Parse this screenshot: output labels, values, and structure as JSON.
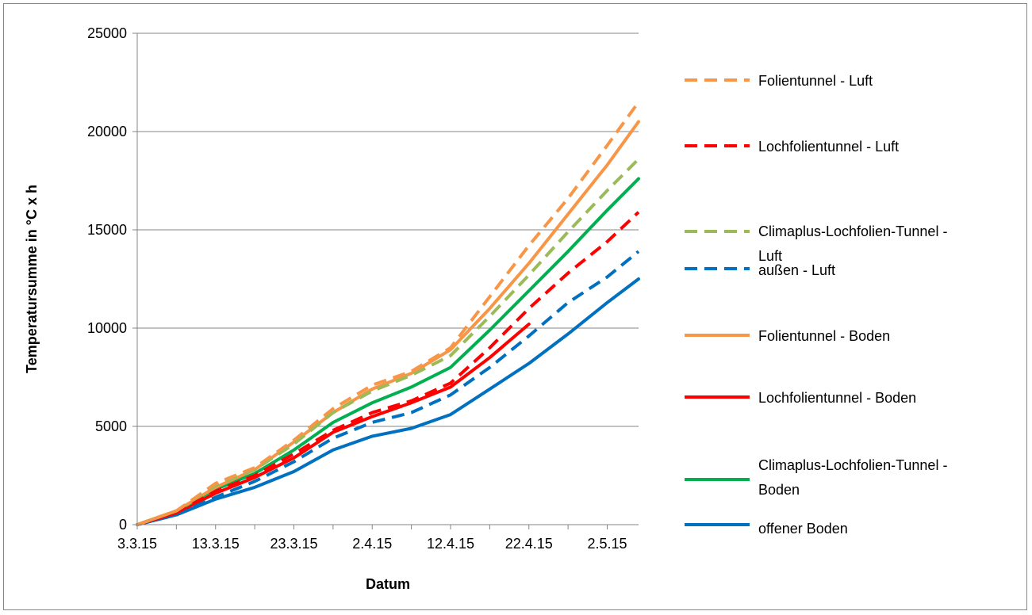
{
  "chart_data": {
    "type": "line",
    "title": "",
    "xlabel": "Datum",
    "ylabel": "Temperatursumme in °C x h",
    "x_ticks": [
      "3.3.15",
      "13.3.15",
      "23.3.15",
      "2.4.15",
      "12.4.15",
      "22.4.15",
      "2.5.15"
    ],
    "xlim": [
      "2015-03-03",
      "2015-05-06"
    ],
    "ylim": [
      0,
      25000
    ],
    "y_ticks": [
      0,
      5000,
      10000,
      15000,
      20000,
      25000
    ],
    "grid": "horizontal",
    "legend_position": "right",
    "series": [
      {
        "name": "Folientunnel - Luft",
        "color": "#f79646",
        "dash": true,
        "points": [
          [
            "2015-03-03",
            0
          ],
          [
            "2015-03-08",
            700
          ],
          [
            "2015-03-13",
            2100
          ],
          [
            "2015-03-18",
            2900
          ],
          [
            "2015-03-23",
            4300
          ],
          [
            "2015-03-28",
            5900
          ],
          [
            "2015-04-02",
            7100
          ],
          [
            "2015-04-07",
            7800
          ],
          [
            "2015-04-12",
            9000
          ],
          [
            "2015-04-17",
            11600
          ],
          [
            "2015-04-22",
            14200
          ],
          [
            "2015-04-27",
            16600
          ],
          [
            "2015-05-02",
            19300
          ],
          [
            "2015-05-06",
            21500
          ]
        ]
      },
      {
        "name": "Lochfolientunnel - Luft",
        "color": "#ff0000",
        "dash": true,
        "points": [
          [
            "2015-03-03",
            0
          ],
          [
            "2015-03-08",
            600
          ],
          [
            "2015-03-13",
            1700
          ],
          [
            "2015-03-18",
            2500
          ],
          [
            "2015-03-23",
            3600
          ],
          [
            "2015-03-28",
            4800
          ],
          [
            "2015-04-02",
            5700
          ],
          [
            "2015-04-07",
            6300
          ],
          [
            "2015-04-12",
            7200
          ],
          [
            "2015-04-17",
            9000
          ],
          [
            "2015-04-22",
            11000
          ],
          [
            "2015-04-27",
            12800
          ],
          [
            "2015-05-02",
            14400
          ],
          [
            "2015-05-06",
            15900
          ]
        ]
      },
      {
        "name": "Climaplus-Lochfolien-Tunnel - Luft",
        "color": "#9bbb59",
        "dash": true,
        "points": [
          [
            "2015-03-03",
            0
          ],
          [
            "2015-03-08",
            700
          ],
          [
            "2015-03-13",
            2000
          ],
          [
            "2015-03-18",
            2800
          ],
          [
            "2015-03-23",
            4100
          ],
          [
            "2015-03-28",
            5700
          ],
          [
            "2015-04-02",
            6800
          ],
          [
            "2015-04-07",
            7600
          ],
          [
            "2015-04-12",
            8600
          ],
          [
            "2015-04-17",
            10600
          ],
          [
            "2015-04-22",
            12700
          ],
          [
            "2015-04-27",
            14900
          ],
          [
            "2015-05-02",
            17000
          ],
          [
            "2015-05-06",
            18600
          ]
        ]
      },
      {
        "name": "außen - Luft",
        "color": "#0070c0",
        "dash": true,
        "points": [
          [
            "2015-03-03",
            0
          ],
          [
            "2015-03-08",
            500
          ],
          [
            "2015-03-13",
            1400
          ],
          [
            "2015-03-18",
            2200
          ],
          [
            "2015-03-23",
            3200
          ],
          [
            "2015-03-28",
            4400
          ],
          [
            "2015-04-02",
            5200
          ],
          [
            "2015-04-07",
            5700
          ],
          [
            "2015-04-12",
            6600
          ],
          [
            "2015-04-17",
            8000
          ],
          [
            "2015-04-22",
            9600
          ],
          [
            "2015-04-27",
            11300
          ],
          [
            "2015-05-02",
            12600
          ],
          [
            "2015-05-06",
            13900
          ]
        ]
      },
      {
        "name": "Folientunnel - Boden",
        "color": "#f79646",
        "dash": false,
        "points": [
          [
            "2015-03-03",
            0
          ],
          [
            "2015-03-08",
            700
          ],
          [
            "2015-03-13",
            1900
          ],
          [
            "2015-03-18",
            2800
          ],
          [
            "2015-03-23",
            4200
          ],
          [
            "2015-03-28",
            5700
          ],
          [
            "2015-04-02",
            6900
          ],
          [
            "2015-04-07",
            7700
          ],
          [
            "2015-04-12",
            8900
          ],
          [
            "2015-04-17",
            11000
          ],
          [
            "2015-04-22",
            13300
          ],
          [
            "2015-04-27",
            15800
          ],
          [
            "2015-05-02",
            18300
          ],
          [
            "2015-05-06",
            20500
          ]
        ]
      },
      {
        "name": "Lochfolientunnel - Boden",
        "color": "#ff0000",
        "dash": false,
        "points": [
          [
            "2015-03-03",
            0
          ],
          [
            "2015-03-08",
            600
          ],
          [
            "2015-03-13",
            1600
          ],
          [
            "2015-03-18",
            2400
          ],
          [
            "2015-03-23",
            3400
          ],
          [
            "2015-03-28",
            4700
          ],
          [
            "2015-04-02",
            5500
          ],
          [
            "2015-04-07",
            6200
          ],
          [
            "2015-04-12",
            7000
          ],
          [
            "2015-04-17",
            8500
          ],
          [
            "2015-04-22",
            10200
          ]
        ]
      },
      {
        "name": "Climaplus-Lochfolien-Tunnel - Boden",
        "color": "#00b050",
        "dash": false,
        "points": [
          [
            "2015-03-03",
            0
          ],
          [
            "2015-03-08",
            700
          ],
          [
            "2015-03-13",
            1800
          ],
          [
            "2015-03-18",
            2600
          ],
          [
            "2015-03-23",
            3800
          ],
          [
            "2015-03-28",
            5200
          ],
          [
            "2015-04-02",
            6200
          ],
          [
            "2015-04-07",
            7000
          ],
          [
            "2015-04-12",
            8000
          ],
          [
            "2015-04-17",
            9900
          ],
          [
            "2015-04-22",
            11900
          ],
          [
            "2015-04-27",
            13900
          ],
          [
            "2015-05-02",
            16000
          ],
          [
            "2015-05-06",
            17600
          ]
        ]
      },
      {
        "name": "offener Boden",
        "color": "#0070c0",
        "dash": false,
        "points": [
          [
            "2015-03-03",
            0
          ],
          [
            "2015-03-08",
            500
          ],
          [
            "2015-03-13",
            1300
          ],
          [
            "2015-03-18",
            1900
          ],
          [
            "2015-03-23",
            2700
          ],
          [
            "2015-03-28",
            3800
          ],
          [
            "2015-04-02",
            4500
          ],
          [
            "2015-04-07",
            4900
          ],
          [
            "2015-04-12",
            5600
          ],
          [
            "2015-04-17",
            6900
          ],
          [
            "2015-04-22",
            8200
          ],
          [
            "2015-04-27",
            9700
          ],
          [
            "2015-05-02",
            11300
          ],
          [
            "2015-05-06",
            12500
          ]
        ]
      }
    ]
  }
}
